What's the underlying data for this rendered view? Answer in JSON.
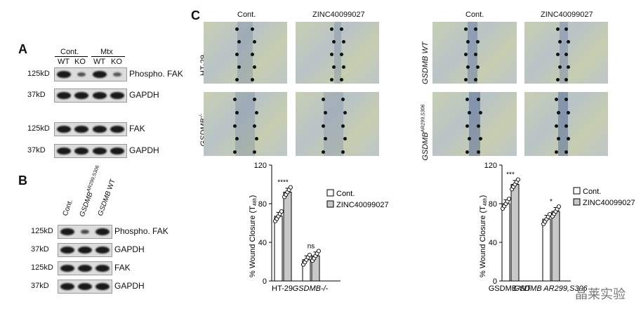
{
  "panelA": {
    "label": "A",
    "groups": [
      "Cont.",
      "Mtx"
    ],
    "lanes": [
      "WT",
      "KO",
      "WT",
      "KO"
    ],
    "rows": [
      {
        "kd": "125kD",
        "protein": "Phospho. FAK",
        "intensity": [
          1,
          0.55,
          1,
          0.5
        ]
      },
      {
        "kd": "37kD",
        "protein": "GAPDH",
        "intensity": [
          1,
          1,
          1,
          1
        ]
      },
      {
        "kd": "125kD",
        "protein": "FAK",
        "intensity": [
          1,
          1,
          1,
          1
        ]
      },
      {
        "kd": "37kD",
        "protein": "GAPDH",
        "intensity": [
          1,
          1,
          1,
          1
        ]
      }
    ]
  },
  "panelB": {
    "label": "B",
    "lanes": [
      "Cont.",
      "GSDMB",
      "GSDMB WT"
    ],
    "lane2_super": "AR299,S306",
    "rows": [
      {
        "kd": "125kD",
        "protein": "Phospho. FAK",
        "intensity": [
          1,
          0.6,
          1
        ]
      },
      {
        "kd": "37kD",
        "protein": "GAPDH",
        "intensity": [
          1,
          1,
          1
        ]
      },
      {
        "kd": "125kD",
        "protein": "FAK",
        "intensity": [
          1,
          1,
          1
        ]
      },
      {
        "kd": "37kD",
        "protein": "GAPDH",
        "intensity": [
          1,
          1,
          1
        ]
      }
    ]
  },
  "panelC": {
    "label": "C",
    "left": {
      "cols": [
        "Cont.",
        "ZINC40099027"
      ],
      "row1": "HT-29",
      "row2_main": "GSDMB",
      "row2_super": "-/-"
    },
    "right": {
      "cols": [
        "Cont.",
        "ZINC40099027"
      ],
      "row1": "GSDMB WT",
      "row2_main": "GSDMB",
      "row2_super": "AR299,S306"
    }
  },
  "chart_data": [
    {
      "type": "bar",
      "ylabel": "% Wound Closure (T",
      "ylabel_sub": "48h",
      "ylim": [
        0,
        120
      ],
      "yticks": [
        "0",
        "40",
        "80",
        "120"
      ],
      "categories": [
        "HT-29",
        "GSDMB-/-"
      ],
      "series": [
        {
          "name": "Cont.",
          "values": [
            67,
            22
          ]
        },
        {
          "name": "ZINC40099027",
          "values": [
            92,
            26
          ]
        }
      ],
      "annotations": [
        "****",
        "ns"
      ],
      "legend": "top-right"
    },
    {
      "type": "bar",
      "ylabel": "% Wound Closure (T",
      "ylabel_sub": "48h",
      "ylim": [
        0,
        120
      ],
      "yticks": [
        "0",
        "40",
        "80",
        "120"
      ],
      "categories": [
        "GSDMB WT",
        "GSDMB AR299,S306"
      ],
      "series": [
        {
          "name": "Cont.",
          "values": [
            80,
            64
          ]
        },
        {
          "name": "ZINC40099027",
          "values": [
            100,
            72
          ]
        }
      ],
      "annotations": [
        "***",
        "*"
      ],
      "legend": "top-right"
    }
  ],
  "watermark": "晶莱实验",
  "colors": {
    "cont": "#ffffff",
    "zinc": "#c8c8c8"
  }
}
